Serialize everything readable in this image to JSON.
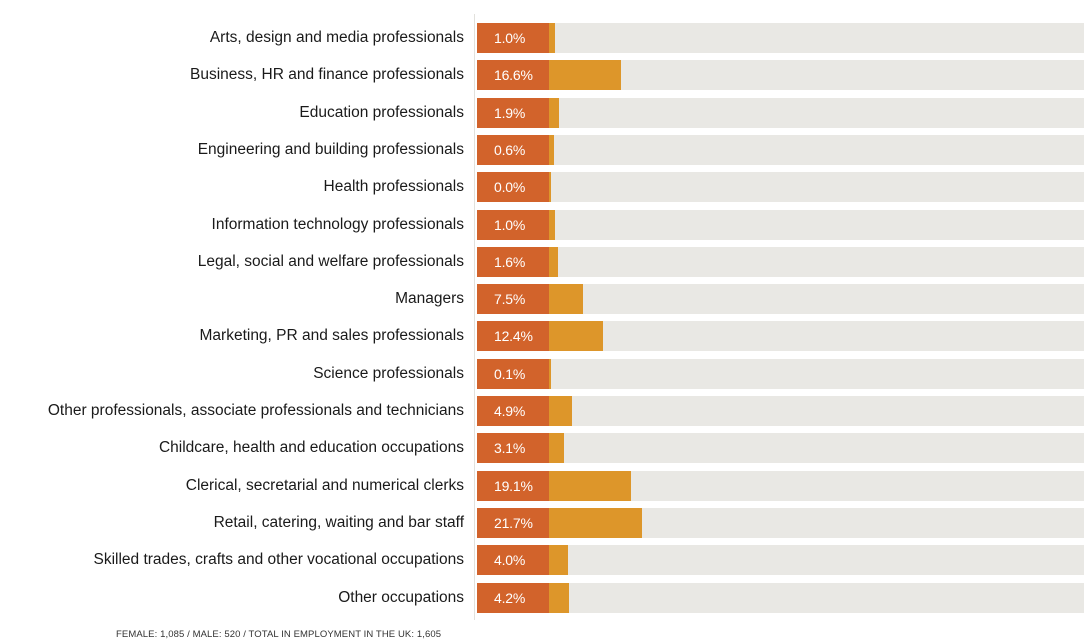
{
  "chart_data": {
    "type": "bar",
    "orientation": "horizontal",
    "categories": [
      "Arts, design and media professionals",
      "Business, HR and finance professionals",
      "Education professionals",
      "Engineering and building professionals",
      "Health professionals",
      "Information technology professionals",
      "Legal, social and welfare professionals",
      "Managers",
      "Marketing, PR and sales professionals",
      "Science professionals",
      "Other professionals, associate professionals and technicians",
      "Childcare, health and education occupations",
      "Clerical, secretarial and numerical clerks",
      "Retail, catering, waiting and bar staff",
      "Skilled trades, crafts and other vocational occupations",
      "Other occupations"
    ],
    "values": [
      1.0,
      16.6,
      1.9,
      0.6,
      0.0,
      1.0,
      1.6,
      7.5,
      12.4,
      0.1,
      4.9,
      3.1,
      19.1,
      21.7,
      4.0,
      4.2
    ],
    "value_labels": [
      "1.0%",
      "16.6%",
      "1.9%",
      "0.6%",
      "0.0%",
      "1.0%",
      "1.6%",
      "7.5%",
      "12.4%",
      "0.1%",
      "4.9%",
      "3.1%",
      "19.1%",
      "21.7%",
      "4.0%",
      "4.2%"
    ],
    "unit": "%",
    "xlim": [
      0,
      100
    ],
    "grid": false,
    "colors": {
      "label_box": "#d2632b",
      "bar": "#dd962a",
      "track": "#e9e8e4",
      "label_text": "#ffffff"
    }
  },
  "footnote": "FEMALE: 1,085 / MALE: 520 / TOTAL IN EMPLOYMENT IN THE UK: 1,605"
}
